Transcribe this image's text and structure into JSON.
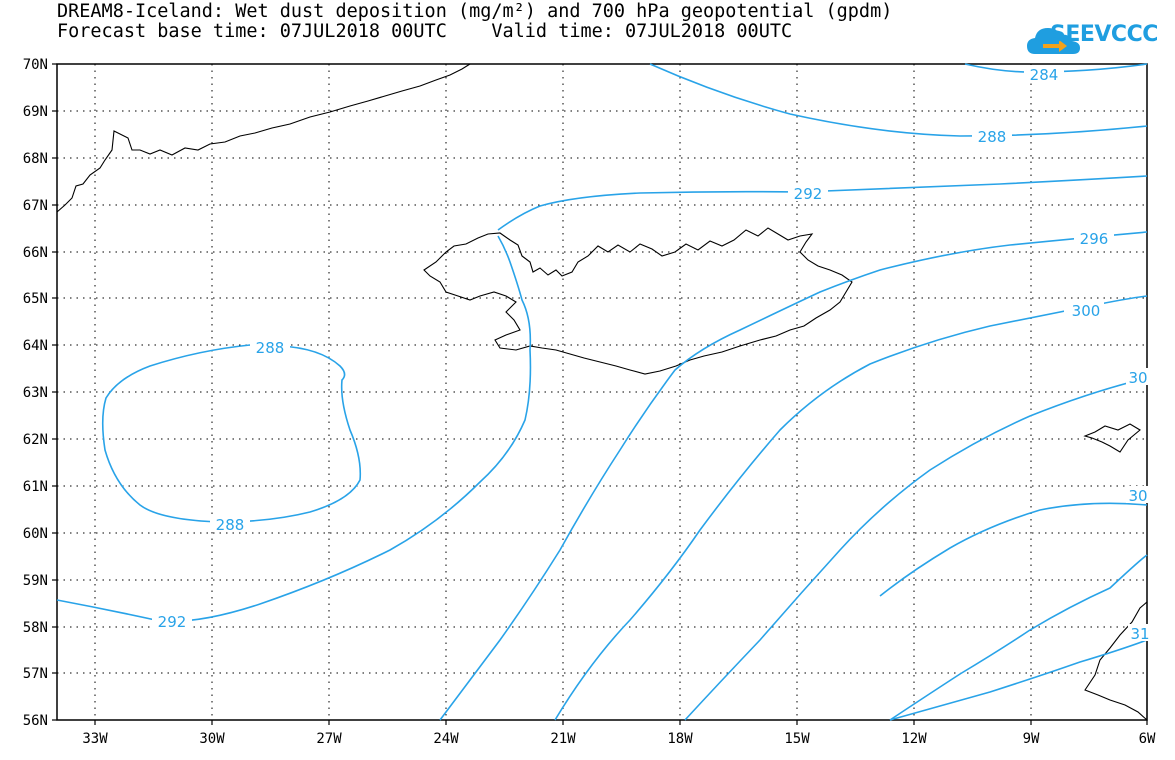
{
  "title": {
    "line1": "DREAM8-Iceland: Wet dust deposition (mg/m²) and 700 hPa geopotential (gpdm)",
    "line2": "Forecast base time: 07JUL2018 00UTC    Valid time: 07JUL2018 00UTC"
  },
  "logo": {
    "text": "SEEVCCC",
    "icon": "cloud-arrow-icon",
    "color": "#1f9ee0"
  },
  "map": {
    "lon_range": [
      -34.5,
      -6
    ],
    "lat_range": [
      56,
      70
    ],
    "lat_ticks": [
      "70N",
      "69N",
      "68N",
      "67N",
      "66N",
      "65N",
      "64N",
      "63N",
      "62N",
      "61N",
      "60N",
      "59N",
      "58N",
      "57N",
      "56N"
    ],
    "lon_ticks": [
      "33W",
      "30W",
      "27W",
      "24W",
      "21W",
      "18W",
      "15W",
      "12W",
      "9W",
      "6W"
    ],
    "contour_color": "#29a3e8",
    "coast_color": "#000000",
    "contour_labels": [
      "284",
      "288",
      "292",
      "296",
      "300",
      "30",
      "30",
      "288",
      "288",
      "292",
      "31"
    ]
  }
}
